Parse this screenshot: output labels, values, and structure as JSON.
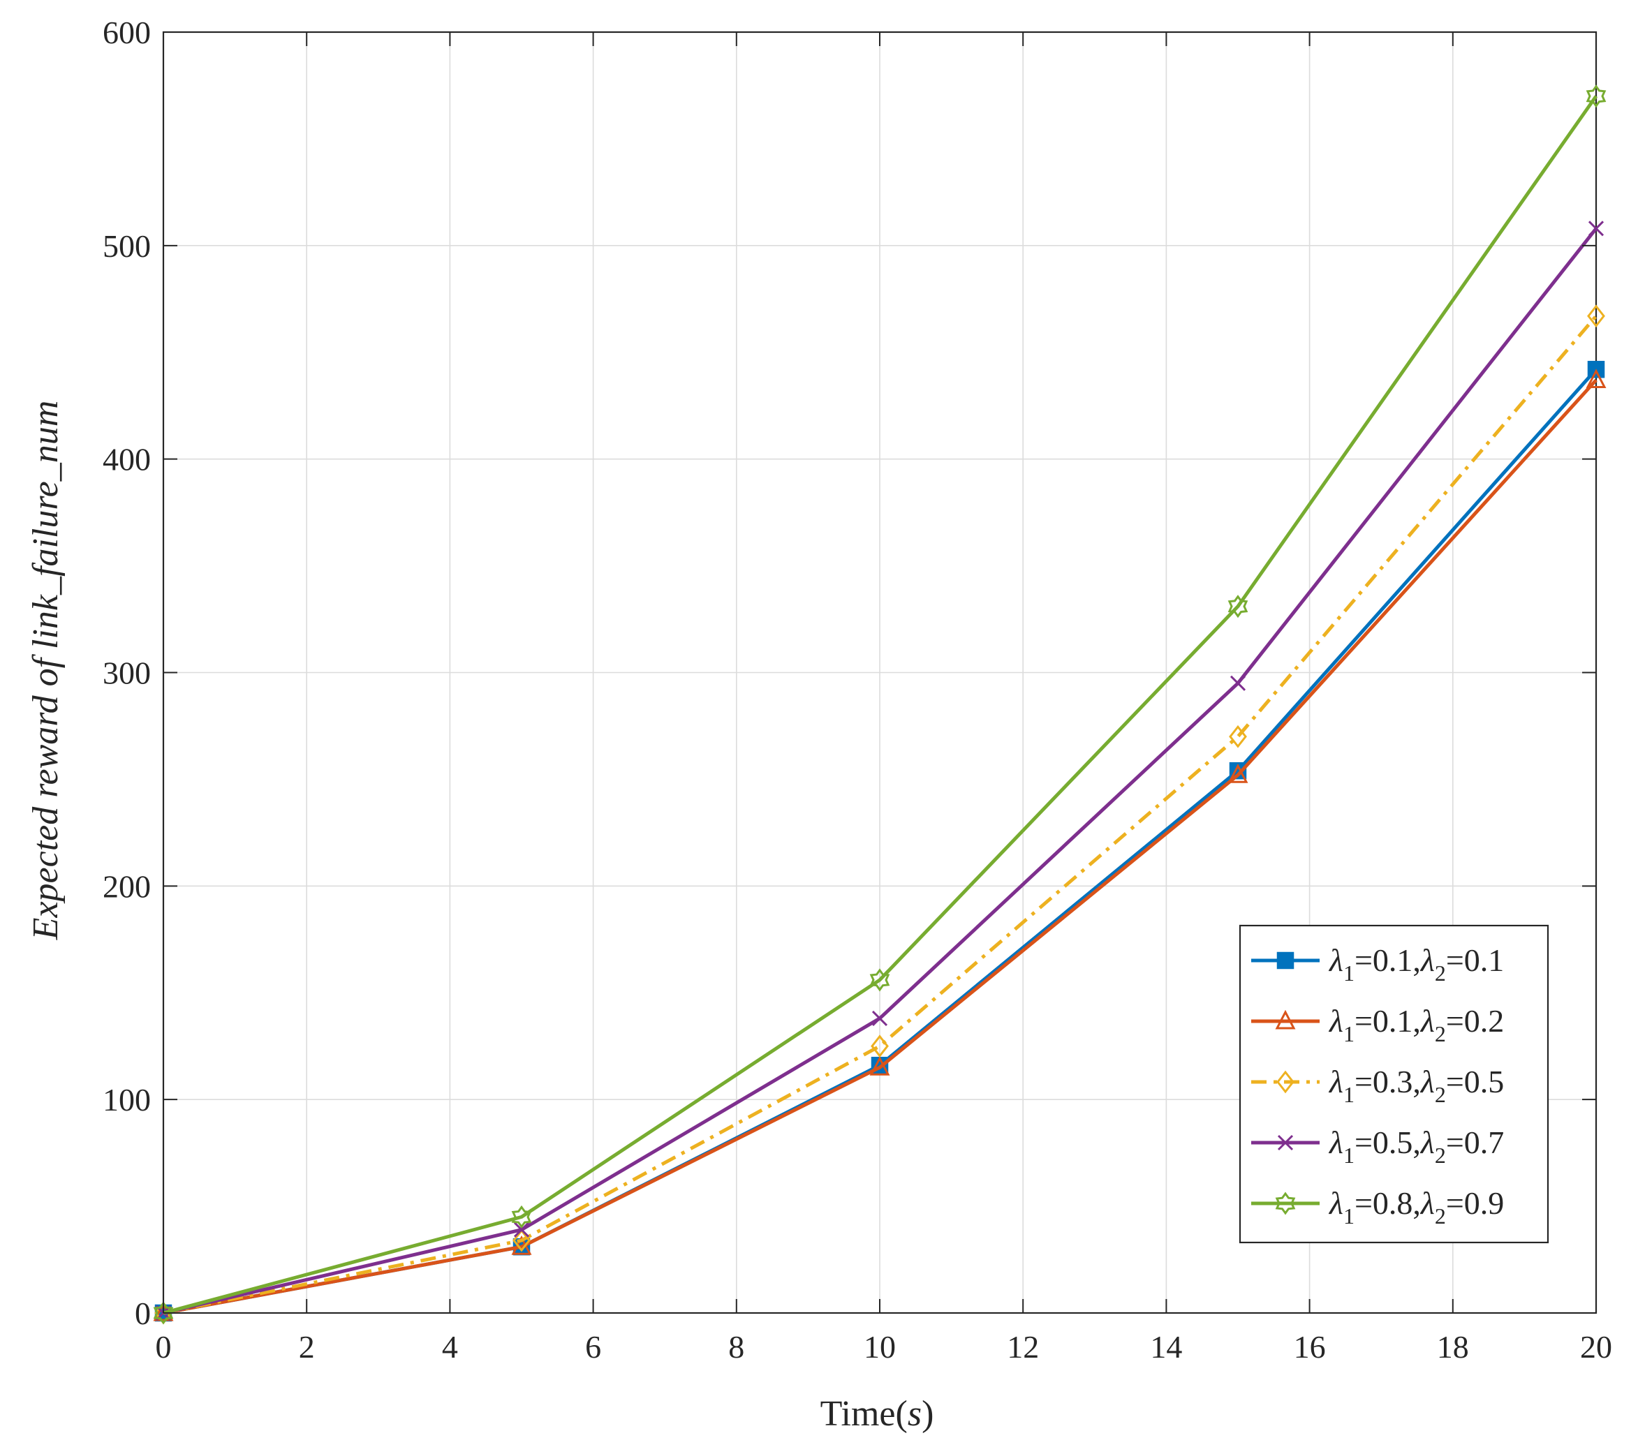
{
  "chart_data": {
    "type": "line",
    "title": "",
    "xlabel": "Time(",
    "xlabel_var": "s",
    "xlabel_close": ")",
    "ylabel": "Expected reward of link_failure_num",
    "x": [
      0,
      5,
      10,
      15,
      20
    ],
    "xlim": [
      0,
      20
    ],
    "ylim": [
      0,
      600
    ],
    "xticks": [
      0,
      2,
      4,
      6,
      8,
      10,
      12,
      14,
      16,
      18,
      20
    ],
    "yticks": [
      0,
      100,
      200,
      300,
      400,
      500,
      600
    ],
    "grid": true,
    "legend_position": "bottom-right",
    "series": [
      {
        "name": "λ1=0.1,λ2=0.1",
        "lambda1": "0.1",
        "lambda2": "0.1",
        "color": "#0072BD",
        "marker": "square",
        "line_style": "solid",
        "values": [
          0,
          31,
          116,
          254,
          442
        ]
      },
      {
        "name": "λ1=0.1,λ2=0.2",
        "lambda1": "0.1",
        "lambda2": "0.2",
        "color": "#D95319",
        "marker": "triangle",
        "line_style": "solid",
        "values": [
          0,
          31,
          115,
          252,
          437
        ]
      },
      {
        "name": "λ1=0.3,λ2=0.5",
        "lambda1": "0.3",
        "lambda2": "0.5",
        "color": "#EDB120",
        "marker": "diamond",
        "line_style": "dashdot",
        "values": [
          0,
          34,
          125,
          270,
          467
        ]
      },
      {
        "name": "λ1=0.5,λ2=0.7",
        "lambda1": "0.5",
        "lambda2": "0.7",
        "color": "#7E2F8E",
        "marker": "x",
        "line_style": "solid",
        "values": [
          0,
          39,
          138,
          295,
          508
        ]
      },
      {
        "name": "λ1=0.8,λ2=0.9",
        "lambda1": "0.8",
        "lambda2": "0.9",
        "color": "#77AC30",
        "marker": "hexagram",
        "line_style": "solid",
        "values": [
          0,
          45,
          156,
          331,
          570
        ]
      }
    ]
  }
}
